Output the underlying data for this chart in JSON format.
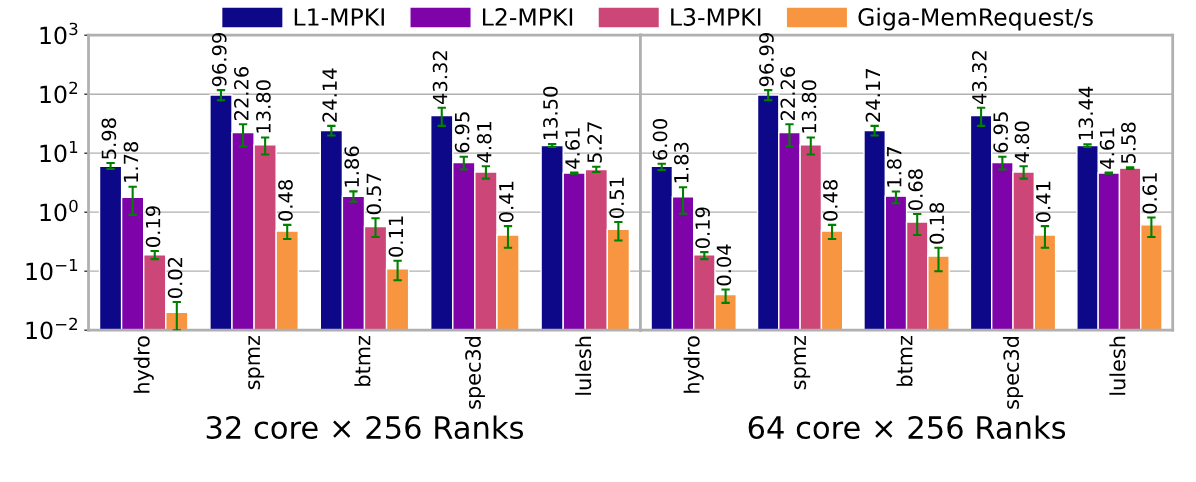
{
  "chart_data": [
    {
      "type": "bar",
      "xlabel": "32 core × 256 Ranks",
      "categories": [
        "hydro",
        "spmz",
        "btmz",
        "spec3d",
        "lulesh"
      ],
      "log": true,
      "ylim": [
        0.01,
        1000
      ],
      "yticks": [
        {
          "value": 0.01,
          "label": "10$^{−2}$"
        },
        {
          "value": 0.1,
          "label": "10$^{−1}$"
        },
        {
          "value": 1,
          "label": "10$^{0}$"
        },
        {
          "value": 10,
          "label": "10$^{1}$"
        },
        {
          "value": 100,
          "label": "10$^{2}$"
        },
        {
          "value": 1000,
          "label": "10$^{3}$"
        }
      ],
      "grid": "y",
      "legend": "top",
      "series": [
        {
          "name": "L1-MPKI",
          "color": "#0d0887",
          "values": [
            5.98,
            96.99,
            24.14,
            43.32,
            13.5
          ],
          "value_labels": [
            "5.98",
            "96.99",
            "24.14",
            "43.32",
            "13.50"
          ],
          "errors": [
            [
              5.4,
              6.8
            ],
            [
              79,
              117
            ],
            [
              20,
              29
            ],
            [
              29,
              59
            ],
            [
              12.8,
              14.3
            ]
          ]
        },
        {
          "name": "L2-MPKI",
          "color": "#7e03a8",
          "values": [
            1.78,
            22.26,
            1.86,
            6.95,
            4.61
          ],
          "value_labels": [
            "1.78",
            "22.26",
            "1.86",
            "6.95",
            "4.61"
          ],
          "errors": [
            [
              0.9,
              2.7
            ],
            [
              13,
              31
            ],
            [
              1.5,
              2.25
            ],
            [
              5.3,
              8.7
            ],
            [
              4.5,
              4.7
            ]
          ]
        },
        {
          "name": "L3-MPKI",
          "color": "#cc4778",
          "values": [
            0.19,
            13.8,
            0.57,
            4.81,
            5.27
          ],
          "value_labels": [
            "0.19",
            "13.80",
            "0.57",
            "4.81",
            "5.27"
          ],
          "errors": [
            [
              0.16,
              0.22
            ],
            [
              9.5,
              18.5
            ],
            [
              0.38,
              0.79
            ],
            [
              3.7,
              6.0
            ],
            [
              4.8,
              5.9
            ]
          ]
        },
        {
          "name": "Giga-MemRequest/s",
          "color": "#f89540",
          "values": [
            0.02,
            0.48,
            0.11,
            0.41,
            0.51
          ],
          "value_labels": [
            "0.02",
            "0.48",
            "0.11",
            "0.41",
            "0.51"
          ],
          "errors": [
            [
              0.01,
              0.03
            ],
            [
              0.35,
              0.61
            ],
            [
              0.07,
              0.15
            ],
            [
              0.25,
              0.58
            ],
            [
              0.33,
              0.68
            ]
          ]
        }
      ]
    },
    {
      "type": "bar",
      "xlabel": "64 core × 256 Ranks",
      "categories": [
        "hydro",
        "spmz",
        "btmz",
        "spec3d",
        "lulesh"
      ],
      "log": true,
      "ylim": [
        0.01,
        1000
      ],
      "yticks": [
        {
          "value": 0.01,
          "label": null
        },
        {
          "value": 0.1,
          "label": null
        },
        {
          "value": 1,
          "label": null
        },
        {
          "value": 10,
          "label": null
        },
        {
          "value": 100,
          "label": null
        },
        {
          "value": 1000,
          "label": null
        }
      ],
      "grid": "y",
      "tick_labels": "x",
      "series": [
        {
          "color": "#0d0887",
          "values": [
            6.0,
            96.99,
            24.17,
            43.32,
            13.44
          ],
          "value_labels": [
            "6.00",
            "96.99",
            "24.17",
            "43.32",
            "13.44"
          ],
          "errors": [
            [
              5.2,
              6.6
            ],
            [
              79,
              117
            ],
            [
              20,
              29
            ],
            [
              29,
              59
            ],
            [
              12.8,
              14.2
            ]
          ]
        },
        {
          "color": "#7e03a8",
          "values": [
            1.83,
            22.26,
            1.87,
            6.95,
            4.61
          ],
          "value_labels": [
            "1.83",
            "22.26",
            "1.87",
            "6.95",
            "4.61"
          ],
          "errors": [
            [
              0.94,
              2.65
            ],
            [
              13,
              31
            ],
            [
              1.42,
              2.24
            ],
            [
              5.3,
              8.7
            ],
            [
              4.5,
              4.7
            ]
          ]
        },
        {
          "color": "#cc4778",
          "values": [
            0.19,
            13.8,
            0.68,
            4.8,
            5.58
          ],
          "value_labels": [
            "0.19",
            "13.80",
            "0.68",
            "4.80",
            "5.58"
          ],
          "errors": [
            [
              0.16,
              0.21
            ],
            [
              9.5,
              18.5
            ],
            [
              0.41,
              0.93
            ],
            [
              3.7,
              6.0
            ],
            [
              5.4,
              5.75
            ]
          ]
        },
        {
          "color": "#f89540",
          "values": [
            0.04,
            0.48,
            0.18,
            0.41,
            0.61
          ],
          "value_labels": [
            "0.04",
            "0.48",
            "0.18",
            "0.41",
            "0.61"
          ],
          "errors": [
            [
              0.029,
              0.049
            ],
            [
              0.35,
              0.61
            ],
            [
              0.1,
              0.25
            ],
            [
              0.25,
              0.58
            ],
            [
              0.38,
              0.81
            ]
          ]
        }
      ]
    }
  ]
}
